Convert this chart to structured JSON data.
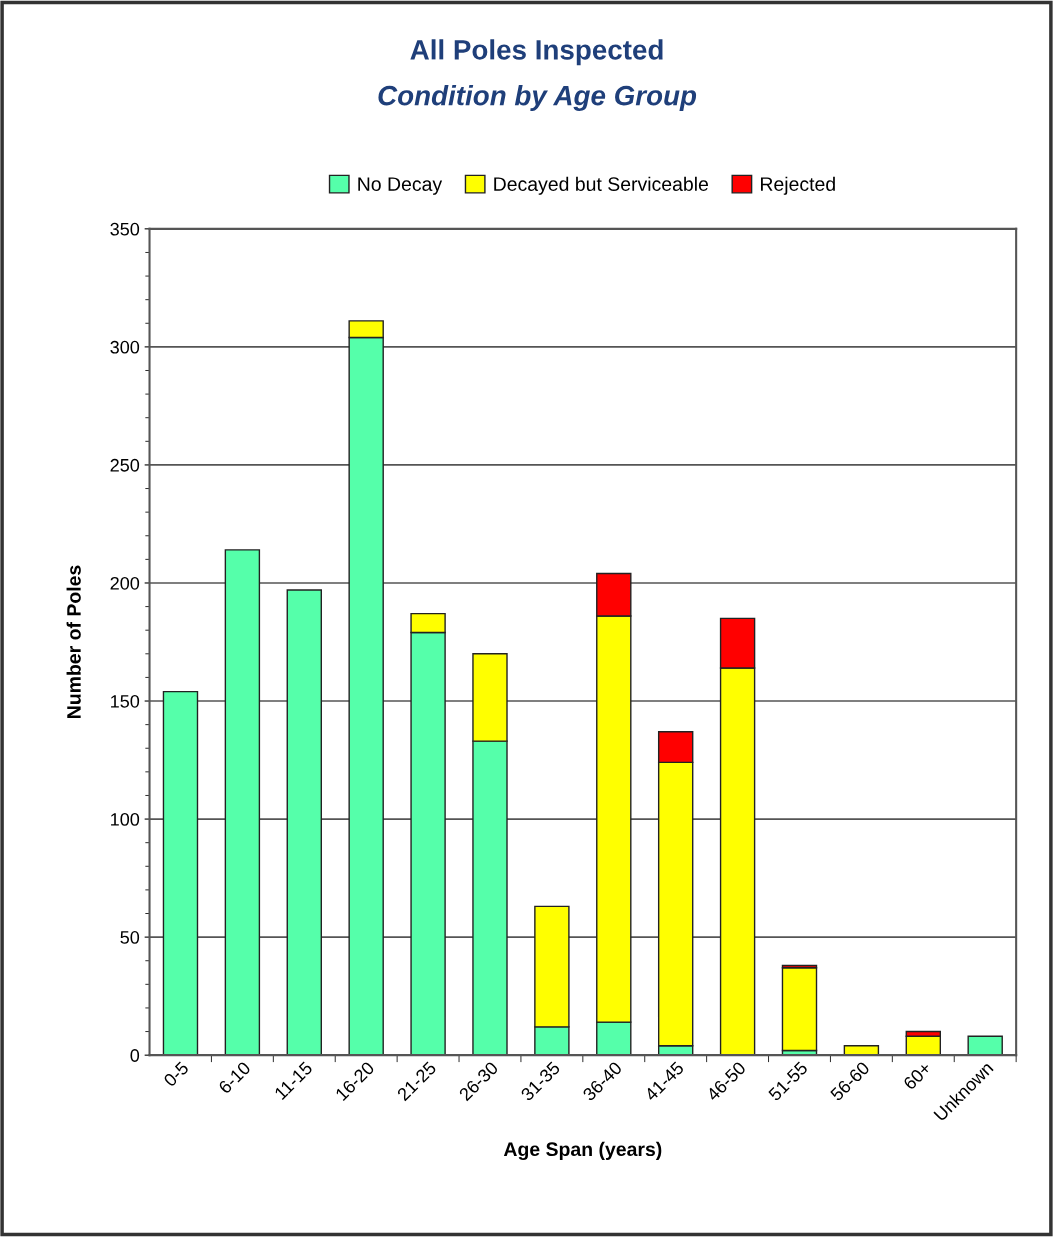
{
  "chart_data": {
    "type": "bar",
    "title": "All Poles Inspected",
    "subtitle": "Condition by Age Group",
    "xlabel": "Age Span (years)",
    "ylabel": "Number of Poles",
    "categories": [
      "0-5",
      "6-10",
      "11-15",
      "16-20",
      "21-25",
      "26-30",
      "31-35",
      "36-40",
      "41-45",
      "46-50",
      "51-55",
      "56-60",
      "60+",
      "Unknown"
    ],
    "stacked": true,
    "series": [
      {
        "name": "No Decay",
        "color": "#55ffaa",
        "values": [
          154,
          214,
          197,
          304,
          179,
          133,
          12,
          14,
          4,
          null,
          2,
          0,
          0,
          8
        ]
      },
      {
        "name": "Decayed but Serviceable",
        "color": "#ffff00",
        "values": [
          0,
          0,
          0,
          7,
          8,
          37,
          51,
          172,
          120,
          164,
          35,
          4,
          8,
          0
        ]
      },
      {
        "name": "Rejected",
        "color": "#ff0000",
        "values": [
          0,
          0,
          0,
          0,
          0,
          0,
          0,
          18,
          13,
          21,
          1,
          0,
          2,
          0
        ]
      }
    ],
    "ylim": [
      0,
      350
    ],
    "yticks": [
      0,
      50,
      100,
      150,
      200,
      250,
      300,
      350
    ],
    "grid": "y",
    "legend": "top"
  }
}
